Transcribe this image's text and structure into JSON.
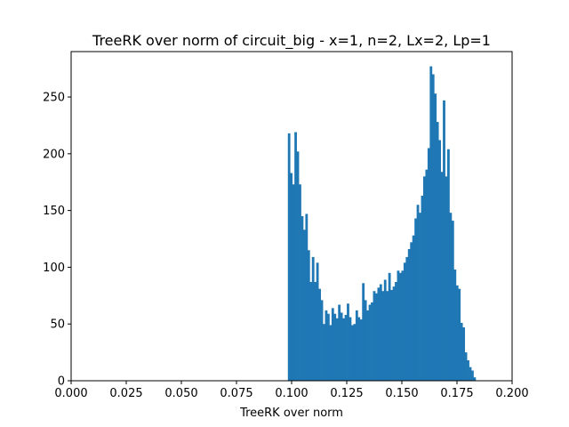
{
  "chart_data": {
    "type": "bar",
    "title": "TreeRK over norm of circuit_big - x=1, n=2, Lx=2, Lp=1",
    "xlabel": "TreeRK over norm",
    "ylabel": "",
    "xlim": [
      0.0,
      0.2
    ],
    "ylim": [
      0,
      290
    ],
    "xticks": [
      "0.000",
      "0.025",
      "0.050",
      "0.075",
      "0.100",
      "0.125",
      "0.150",
      "0.175",
      "0.200"
    ],
    "yticks": [
      "0",
      "50",
      "100",
      "150",
      "200",
      "250"
    ],
    "bar_color": "#1f77b4",
    "grid": false,
    "bin_start": 0.0983,
    "bin_width": 0.00099,
    "values": [
      218,
      183,
      173,
      219,
      202,
      173,
      145,
      133,
      147,
      115,
      87,
      109,
      87,
      104,
      81,
      71,
      50,
      62,
      59,
      49,
      64,
      59,
      55,
      67,
      60,
      55,
      58,
      68,
      56,
      49,
      50,
      62,
      56,
      54,
      86,
      71,
      62,
      67,
      69,
      79,
      77,
      82,
      85,
      79,
      89,
      79,
      95,
      80,
      83,
      87,
      97,
      95,
      97,
      104,
      109,
      116,
      122,
      128,
      143,
      155,
      148,
      163,
      180,
      186,
      205,
      277,
      270,
      253,
      228,
      212,
      184,
      247,
      180,
      204,
      148,
      141,
      98,
      84,
      81,
      51,
      47,
      25,
      18,
      12,
      9,
      3
    ]
  }
}
